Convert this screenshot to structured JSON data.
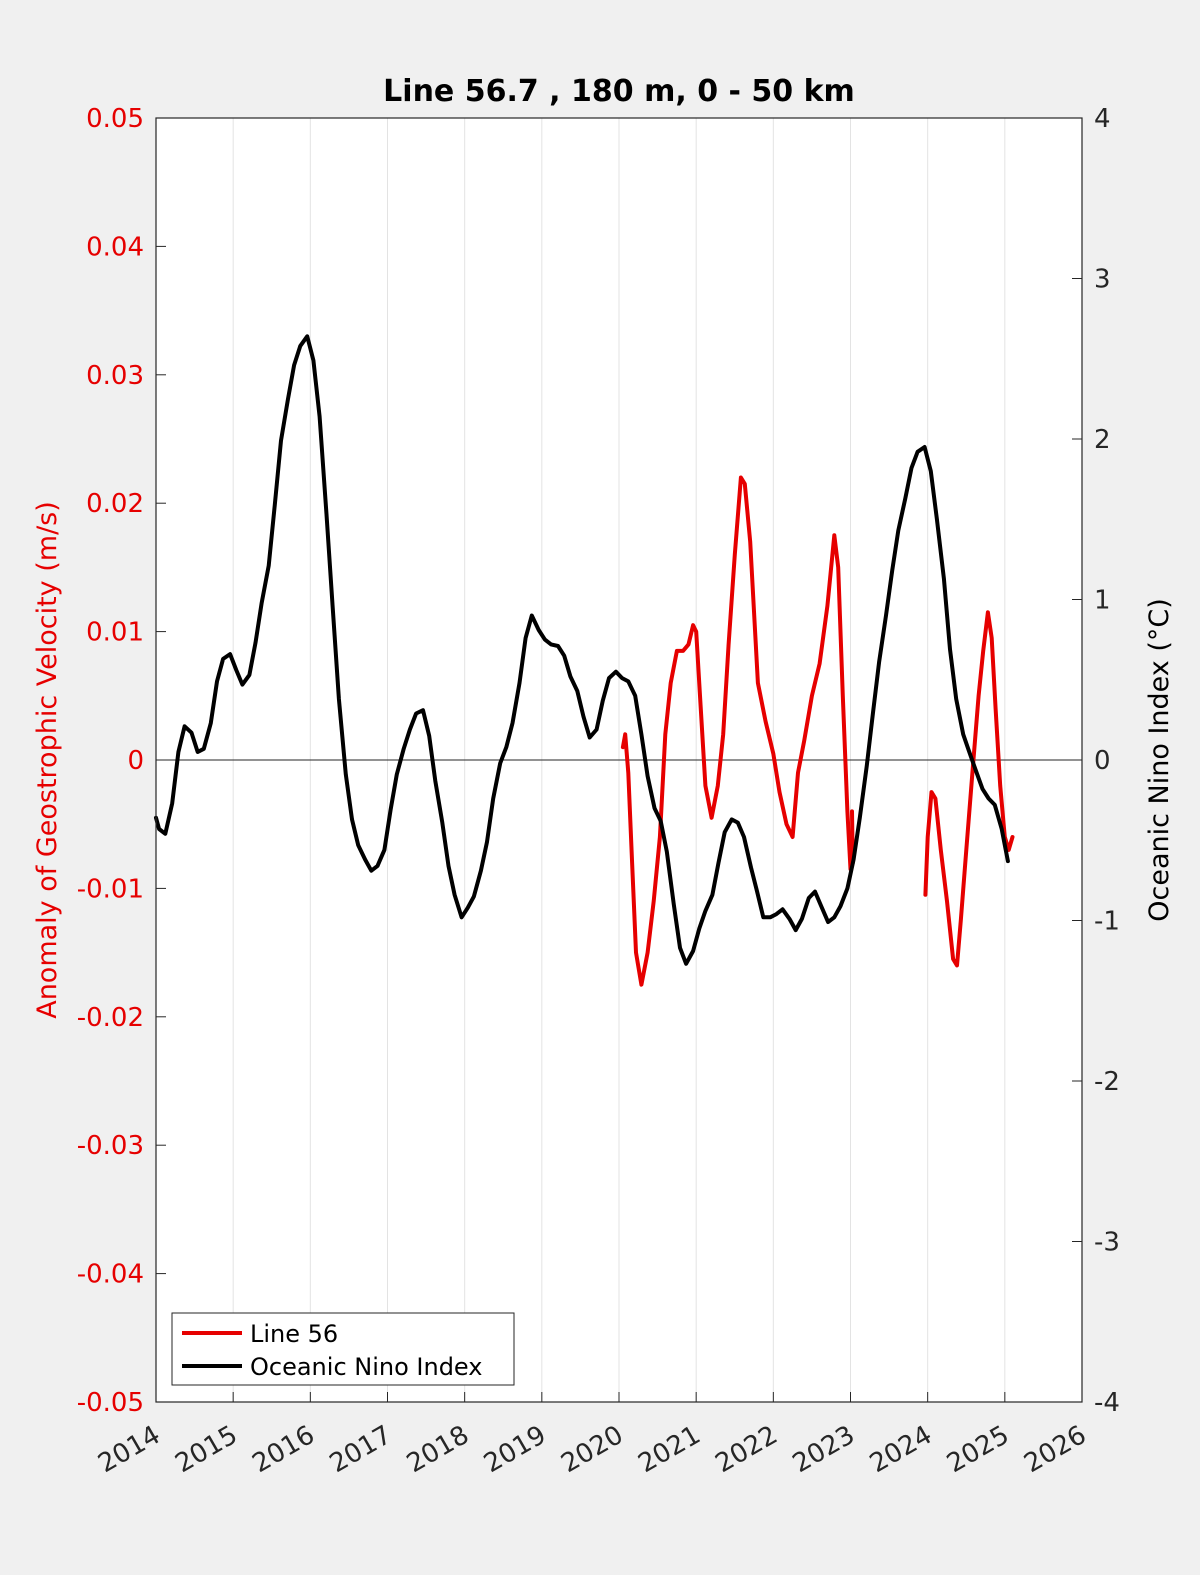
{
  "chart_data": {
    "type": "line",
    "title": "Line 56.7 , 180 m, 0 - 50 km",
    "xlabel": "",
    "ylabel_left": "Anomaly of Geostrophic Velocity (m/s)",
    "ylabel_right": "Oceanic Nino Index (°C)",
    "xlim": [
      2014,
      2026
    ],
    "ylim_left": [
      -0.05,
      0.05
    ],
    "ylim_right": [
      -4,
      4
    ],
    "x_ticks": [
      "2014",
      "2015",
      "2016",
      "2017",
      "2018",
      "2019",
      "2020",
      "2021",
      "2022",
      "2023",
      "2024",
      "2025",
      "2026"
    ],
    "y_left_ticks": [
      "-0.05",
      "-0.04",
      "-0.03",
      "-0.02",
      "-0.01",
      "0",
      "0.01",
      "0.02",
      "0.03",
      "0.04",
      "0.05"
    ],
    "y_right_ticks": [
      "-4",
      "-3",
      "-2",
      "-1",
      "0",
      "1",
      "2",
      "3",
      "4"
    ],
    "grid": "vertical",
    "zero_line": true,
    "legend_position": "bottom-left",
    "colors": {
      "line56": "#e60000",
      "oni": "#000000",
      "left_axis": "#e60000",
      "right_axis": "#000000"
    },
    "series": [
      {
        "name": "Line 56",
        "axis": "left",
        "color": "#e60000",
        "segments": [
          [
            [
              2020.05,
              0.001
            ],
            [
              2020.08,
              0.002
            ],
            [
              2020.12,
              -0.001
            ],
            [
              2020.17,
              -0.008
            ],
            [
              2020.22,
              -0.015
            ],
            [
              2020.29,
              -0.0175
            ],
            [
              2020.37,
              -0.015
            ],
            [
              2020.45,
              -0.011
            ],
            [
              2020.53,
              -0.006
            ],
            [
              2020.6,
              0.002
            ],
            [
              2020.67,
              0.006
            ],
            [
              2020.75,
              0.0085
            ],
            [
              2020.83,
              0.0085
            ],
            [
              2020.9,
              0.009
            ],
            [
              2020.96,
              0.0105
            ],
            [
              2021.0,
              0.01
            ],
            [
              2021.05,
              0.005
            ],
            [
              2021.12,
              -0.002
            ],
            [
              2021.2,
              -0.0045
            ],
            [
              2021.28,
              -0.002
            ],
            [
              2021.35,
              0.002
            ],
            [
              2021.42,
              0.009
            ],
            [
              2021.5,
              0.016
            ],
            [
              2021.58,
              0.022
            ],
            [
              2021.63,
              0.0215
            ],
            [
              2021.7,
              0.017
            ],
            [
              2021.8,
              0.006
            ],
            [
              2021.9,
              0.003
            ],
            [
              2022.0,
              0.0005
            ],
            [
              2022.08,
              -0.0025
            ],
            [
              2022.17,
              -0.005
            ],
            [
              2022.25,
              -0.006
            ],
            [
              2022.32,
              -0.001
            ],
            [
              2022.4,
              0.0015
            ],
            [
              2022.5,
              0.005
            ],
            [
              2022.6,
              0.0075
            ],
            [
              2022.7,
              0.012
            ],
            [
              2022.79,
              0.0175
            ],
            [
              2022.84,
              0.015
            ],
            [
              2022.9,
              0.005
            ],
            [
              2022.96,
              -0.004
            ],
            [
              2023.0,
              -0.0085
            ]
          ],
          [
            [
              2023.02,
              -0.004
            ],
            [
              2023.03,
              -0.008
            ]
          ],
          [
            [
              2023.97,
              -0.0105
            ],
            [
              2024.0,
              -0.006
            ],
            [
              2024.05,
              -0.0025
            ],
            [
              2024.1,
              -0.003
            ],
            [
              2024.17,
              -0.007
            ],
            [
              2024.25,
              -0.011
            ],
            [
              2024.33,
              -0.0155
            ],
            [
              2024.38,
              -0.016
            ],
            [
              2024.43,
              -0.0125
            ],
            [
              2024.5,
              -0.007
            ],
            [
              2024.58,
              -0.001
            ],
            [
              2024.66,
              0.005
            ],
            [
              2024.72,
              0.0085
            ],
            [
              2024.78,
              0.0115
            ],
            [
              2024.83,
              0.0095
            ],
            [
              2024.88,
              0.004
            ],
            [
              2024.94,
              -0.002
            ],
            [
              2025.0,
              -0.006
            ],
            [
              2025.05,
              -0.007
            ],
            [
              2025.1,
              -0.006
            ]
          ]
        ]
      },
      {
        "name": "Oceanic Nino Index",
        "axis": "right",
        "color": "#000000",
        "points": [
          [
            2014.0,
            -0.36
          ],
          [
            2014.04,
            -0.43
          ],
          [
            2014.12,
            -0.46
          ],
          [
            2014.21,
            -0.27
          ],
          [
            2014.29,
            0.05
          ],
          [
            2014.37,
            0.21
          ],
          [
            2014.46,
            0.17
          ],
          [
            2014.54,
            0.05
          ],
          [
            2014.62,
            0.07
          ],
          [
            2014.71,
            0.23
          ],
          [
            2014.79,
            0.49
          ],
          [
            2014.87,
            0.63
          ],
          [
            2014.96,
            0.66
          ],
          [
            2015.04,
            0.56
          ],
          [
            2015.12,
            0.47
          ],
          [
            2015.21,
            0.53
          ],
          [
            2015.29,
            0.73
          ],
          [
            2015.37,
            0.98
          ],
          [
            2015.46,
            1.21
          ],
          [
            2015.54,
            1.59
          ],
          [
            2015.62,
            1.99
          ],
          [
            2015.71,
            2.25
          ],
          [
            2015.79,
            2.46
          ],
          [
            2015.87,
            2.58
          ],
          [
            2015.96,
            2.64
          ],
          [
            2016.04,
            2.49
          ],
          [
            2016.12,
            2.14
          ],
          [
            2016.21,
            1.53
          ],
          [
            2016.29,
            0.95
          ],
          [
            2016.37,
            0.38
          ],
          [
            2016.46,
            -0.09
          ],
          [
            2016.54,
            -0.37
          ],
          [
            2016.62,
            -0.53
          ],
          [
            2016.71,
            -0.62
          ],
          [
            2016.79,
            -0.69
          ],
          [
            2016.87,
            -0.66
          ],
          [
            2016.96,
            -0.56
          ],
          [
            2017.04,
            -0.31
          ],
          [
            2017.12,
            -0.09
          ],
          [
            2017.21,
            0.07
          ],
          [
            2017.29,
            0.19
          ],
          [
            2017.37,
            0.29
          ],
          [
            2017.46,
            0.31
          ],
          [
            2017.54,
            0.15
          ],
          [
            2017.62,
            -0.13
          ],
          [
            2017.71,
            -0.39
          ],
          [
            2017.79,
            -0.66
          ],
          [
            2017.87,
            -0.84
          ],
          [
            2017.96,
            -0.98
          ],
          [
            2018.04,
            -0.92
          ],
          [
            2018.12,
            -0.85
          ],
          [
            2018.21,
            -0.69
          ],
          [
            2018.29,
            -0.51
          ],
          [
            2018.37,
            -0.24
          ],
          [
            2018.46,
            -0.02
          ],
          [
            2018.54,
            0.08
          ],
          [
            2018.62,
            0.23
          ],
          [
            2018.71,
            0.48
          ],
          [
            2018.79,
            0.76
          ],
          [
            2018.87,
            0.9
          ],
          [
            2018.96,
            0.81
          ],
          [
            2019.04,
            0.75
          ],
          [
            2019.12,
            0.72
          ],
          [
            2019.21,
            0.71
          ],
          [
            2019.29,
            0.65
          ],
          [
            2019.37,
            0.52
          ],
          [
            2019.46,
            0.43
          ],
          [
            2019.54,
            0.27
          ],
          [
            2019.62,
            0.14
          ],
          [
            2019.71,
            0.19
          ],
          [
            2019.79,
            0.37
          ],
          [
            2019.87,
            0.51
          ],
          [
            2019.96,
            0.55
          ],
          [
            2020.04,
            0.51
          ],
          [
            2020.12,
            0.49
          ],
          [
            2020.21,
            0.4
          ],
          [
            2020.29,
            0.16
          ],
          [
            2020.37,
            -0.1
          ],
          [
            2020.46,
            -0.3
          ],
          [
            2020.54,
            -0.38
          ],
          [
            2020.62,
            -0.57
          ],
          [
            2020.71,
            -0.9
          ],
          [
            2020.79,
            -1.17
          ],
          [
            2020.87,
            -1.27
          ],
          [
            2020.96,
            -1.19
          ],
          [
            2021.04,
            -1.05
          ],
          [
            2021.12,
            -0.94
          ],
          [
            2021.21,
            -0.84
          ],
          [
            2021.29,
            -0.64
          ],
          [
            2021.37,
            -0.45
          ],
          [
            2021.46,
            -0.37
          ],
          [
            2021.54,
            -0.39
          ],
          [
            2021.62,
            -0.48
          ],
          [
            2021.71,
            -0.67
          ],
          [
            2021.79,
            -0.82
          ],
          [
            2021.87,
            -0.98
          ],
          [
            2021.96,
            -0.98
          ],
          [
            2022.04,
            -0.96
          ],
          [
            2022.12,
            -0.93
          ],
          [
            2022.21,
            -0.99
          ],
          [
            2022.29,
            -1.06
          ],
          [
            2022.37,
            -0.99
          ],
          [
            2022.46,
            -0.86
          ],
          [
            2022.54,
            -0.82
          ],
          [
            2022.62,
            -0.91
          ],
          [
            2022.71,
            -1.01
          ],
          [
            2022.79,
            -0.98
          ],
          [
            2022.87,
            -0.91
          ],
          [
            2022.96,
            -0.8
          ],
          [
            2023.04,
            -0.62
          ],
          [
            2023.12,
            -0.36
          ],
          [
            2023.21,
            -0.04
          ],
          [
            2023.29,
            0.29
          ],
          [
            2023.37,
            0.61
          ],
          [
            2023.46,
            0.9
          ],
          [
            2023.54,
            1.18
          ],
          [
            2023.62,
            1.43
          ],
          [
            2023.71,
            1.63
          ],
          [
            2023.79,
            1.82
          ],
          [
            2023.87,
            1.92
          ],
          [
            2023.96,
            1.95
          ],
          [
            2024.04,
            1.8
          ],
          [
            2024.12,
            1.5
          ],
          [
            2024.21,
            1.13
          ],
          [
            2024.29,
            0.69
          ],
          [
            2024.37,
            0.38
          ],
          [
            2024.46,
            0.16
          ],
          [
            2024.54,
            0.05
          ],
          [
            2024.62,
            -0.06
          ],
          [
            2024.71,
            -0.18
          ],
          [
            2024.79,
            -0.24
          ],
          [
            2024.87,
            -0.28
          ],
          [
            2024.96,
            -0.43
          ],
          [
            2025.04,
            -0.63
          ]
        ]
      }
    ]
  }
}
